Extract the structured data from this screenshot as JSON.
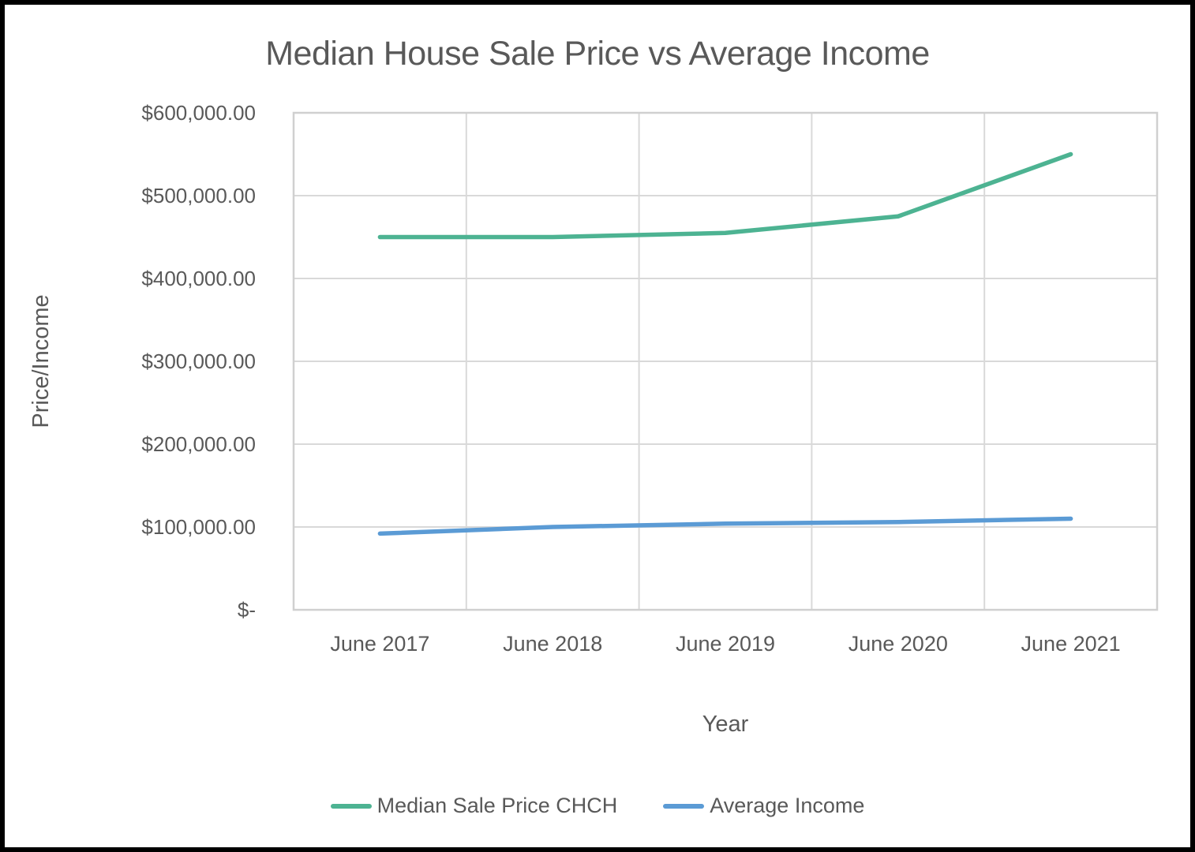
{
  "chart_data": {
    "type": "line",
    "title": "Median House Sale Price vs Average Income",
    "xlabel": "Year",
    "ylabel": "Price/Income",
    "categories": [
      "June 2017",
      "June 2018",
      "June 2019",
      "June 2020",
      "June 2021"
    ],
    "series": [
      {
        "name": "Median Sale Price CHCH",
        "color": "#4DB392",
        "values": [
          450000,
          450000,
          455000,
          475000,
          550000
        ]
      },
      {
        "name": "Average Income",
        "color": "#5B9BD5",
        "values": [
          92000,
          100000,
          104000,
          106000,
          110000
        ]
      }
    ],
    "ylim": [
      0,
      600000
    ],
    "ytick_step": 100000,
    "ytick_labels": [
      "$-",
      "$100,000.00",
      "$200,000.00",
      "$300,000.00",
      "$400,000.00",
      "$500,000.00",
      "$600,000.00"
    ],
    "grid": true,
    "gridline_color": "#D9D9D9",
    "plot_border_color": "#D0D0D0",
    "text_color": "#595959",
    "legend_position": "bottom"
  }
}
